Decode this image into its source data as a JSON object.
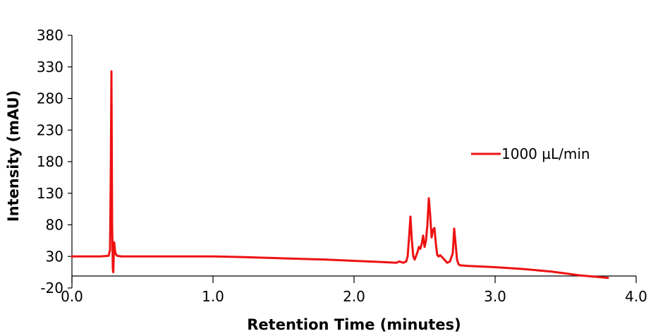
{
  "chart_data": {
    "type": "line",
    "title": "",
    "xlabel": "Retention Time (minutes)",
    "ylabel": "Intensity (mAU)",
    "xlim": [
      0.0,
      4.0
    ],
    "ylim": [
      -20,
      380
    ],
    "x_ticks": [
      0.0,
      1.0,
      2.0,
      3.0,
      4.0
    ],
    "x_tick_labels": [
      "0.0",
      "1.0",
      "2.0",
      "3.0",
      "4.0"
    ],
    "y_ticks": [
      -20,
      30,
      80,
      130,
      180,
      230,
      280,
      330,
      380
    ],
    "y_tick_labels": [
      "-20",
      "30",
      "80",
      "130",
      "180",
      "230",
      "280",
      "330",
      "380"
    ],
    "grid": false,
    "legend_position": "right",
    "series": [
      {
        "name": "1000 µL/min",
        "color": "#ee1111",
        "x": [
          0.0,
          0.1,
          0.2,
          0.26,
          0.27,
          0.275,
          0.28,
          0.285,
          0.29,
          0.293,
          0.297,
          0.3,
          0.305,
          0.31,
          0.32,
          0.35,
          0.5,
          0.8,
          1.0,
          1.2,
          1.5,
          1.8,
          2.0,
          2.2,
          2.3,
          2.32,
          2.35,
          2.37,
          2.38,
          2.39,
          2.4,
          2.41,
          2.42,
          2.43,
          2.45,
          2.46,
          2.47,
          2.48,
          2.49,
          2.5,
          2.51,
          2.52,
          2.53,
          2.54,
          2.55,
          2.56,
          2.57,
          2.58,
          2.59,
          2.6,
          2.61,
          2.62,
          2.64,
          2.66,
          2.68,
          2.7,
          2.71,
          2.72,
          2.73,
          2.74,
          2.75,
          2.8,
          3.0,
          3.2,
          3.4,
          3.5,
          3.6,
          3.7,
          3.8
        ],
        "values": [
          30,
          30,
          30,
          31,
          40,
          150,
          323,
          80,
          10,
          5,
          35,
          52,
          40,
          34,
          31,
          30,
          30,
          30,
          30,
          29,
          27,
          25,
          23,
          21,
          20,
          22,
          20,
          22,
          30,
          60,
          93,
          55,
          30,
          25,
          37,
          45,
          42,
          50,
          63,
          45,
          55,
          80,
          122,
          95,
          60,
          72,
          75,
          50,
          32,
          30,
          32,
          30,
          25,
          20,
          22,
          35,
          74,
          50,
          25,
          18,
          16,
          15,
          13,
          10,
          6,
          3,
          0,
          -2,
          -4
        ]
      }
    ]
  }
}
